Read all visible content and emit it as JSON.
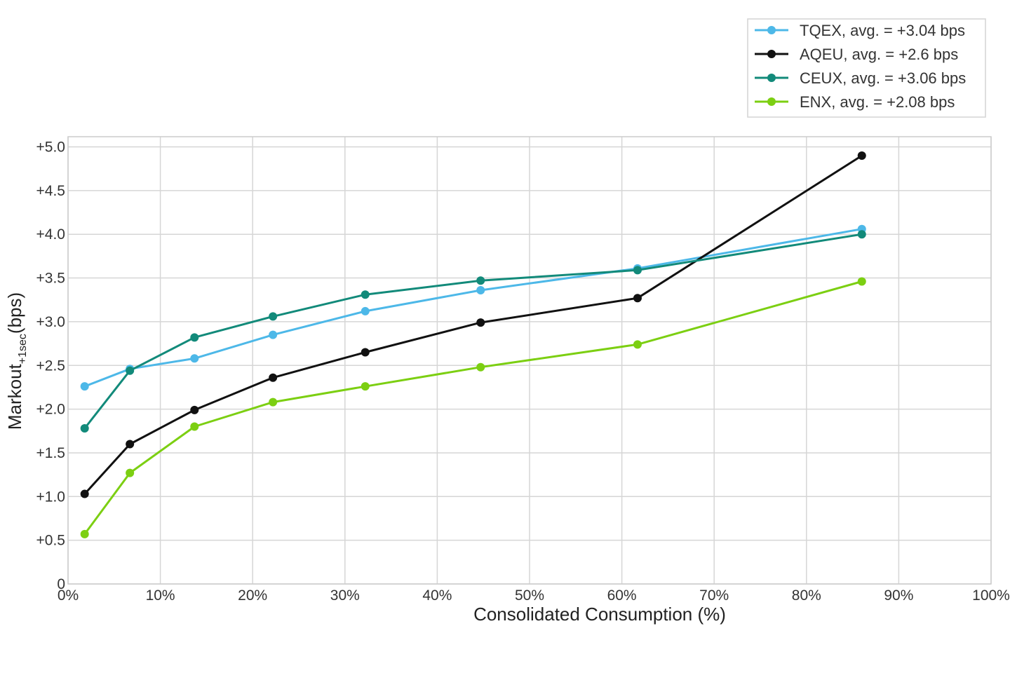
{
  "chart_data": {
    "type": "line",
    "title": "",
    "xlabel": "Consolidated Consumption (%)",
    "ylabel": {
      "main": "Markout",
      "subscript": "+1sec",
      "unit": "(bps)"
    },
    "xlim": [
      0,
      100
    ],
    "ylim": [
      0,
      5.1
    ],
    "x_ticks": [
      0,
      10,
      20,
      30,
      40,
      50,
      60,
      70,
      80,
      90,
      100
    ],
    "x_tick_labels": [
      "0%",
      "10%",
      "20%",
      "30%",
      "40%",
      "50%",
      "60%",
      "70%",
      "80%",
      "90%",
      "100%"
    ],
    "y_ticks": [
      0,
      0.5,
      1.0,
      1.5,
      2.0,
      2.5,
      3.0,
      3.5,
      4.0,
      4.5,
      5.0
    ],
    "y_tick_labels": [
      "0",
      "+0.5",
      "+1.0",
      "+1.5",
      "+2.0",
      "+2.5",
      "+3.0",
      "+3.5",
      "+4.0",
      "+4.5",
      "+5.0"
    ],
    "grid": true,
    "legend_position": "top-right",
    "x": [
      1.8,
      6.7,
      13.7,
      22.2,
      32.2,
      44.7,
      61.7,
      86.0
    ],
    "series": [
      {
        "name": "TQEX, avg. = +3.04 bps",
        "color": "#4db8e8",
        "values": [
          2.26,
          2.46,
          2.58,
          2.85,
          3.12,
          3.36,
          3.61,
          4.06
        ]
      },
      {
        "name": "AQEU, avg. = +2.6 bps",
        "color": "#111111",
        "values": [
          1.03,
          1.6,
          1.99,
          2.36,
          2.65,
          2.99,
          3.27,
          4.9
        ]
      },
      {
        "name": "CEUX, avg. = +3.06 bps",
        "color": "#128a7a",
        "values": [
          1.78,
          2.44,
          2.82,
          3.06,
          3.31,
          3.47,
          3.59,
          4.0
        ]
      },
      {
        "name": "ENX, avg. = +2.08 bps",
        "color": "#7ccf12",
        "values": [
          0.57,
          1.27,
          1.8,
          2.08,
          2.26,
          2.48,
          2.74,
          3.46
        ]
      }
    ]
  }
}
